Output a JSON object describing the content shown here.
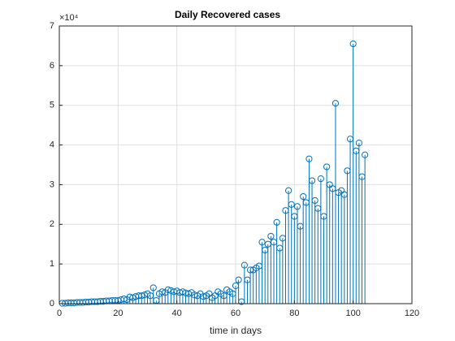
{
  "chart_data": {
    "type": "stem",
    "title": "Daily Recovered cases",
    "xlabel": "time in days",
    "y_multiplier": "×10⁴",
    "x": [
      1,
      2,
      3,
      4,
      5,
      6,
      7,
      8,
      9,
      10,
      11,
      12,
      13,
      14,
      15,
      16,
      17,
      18,
      19,
      20,
      21,
      22,
      23,
      24,
      25,
      26,
      27,
      28,
      29,
      30,
      31,
      32,
      33,
      34,
      35,
      36,
      37,
      38,
      39,
      40,
      41,
      42,
      43,
      44,
      45,
      46,
      47,
      48,
      49,
      50,
      51,
      52,
      53,
      54,
      55,
      56,
      57,
      58,
      59,
      60,
      61,
      62,
      63,
      64,
      65,
      66,
      67,
      68,
      69,
      70,
      71,
      72,
      73,
      74,
      75,
      76,
      77,
      78,
      79,
      80,
      81,
      82,
      83,
      84,
      85,
      86,
      87,
      88,
      89,
      90,
      91,
      92,
      93,
      94,
      95,
      96,
      97,
      98,
      99,
      100,
      101,
      102,
      103,
      104
    ],
    "values": [
      0.01,
      0.01,
      0.02,
      0.02,
      0.02,
      0.03,
      0.03,
      0.03,
      0.04,
      0.04,
      0.05,
      0.05,
      0.05,
      0.06,
      0.06,
      0.07,
      0.07,
      0.08,
      0.08,
      0.08,
      0.1,
      0.12,
      0.1,
      0.17,
      0.15,
      0.18,
      0.2,
      0.2,
      0.22,
      0.25,
      0.2,
      0.4,
      0.08,
      0.25,
      0.3,
      0.28,
      0.35,
      0.33,
      0.3,
      0.32,
      0.28,
      0.3,
      0.27,
      0.25,
      0.28,
      0.22,
      0.2,
      0.25,
      0.18,
      0.2,
      0.25,
      0.15,
      0.2,
      0.3,
      0.25,
      0.2,
      0.35,
      0.3,
      0.25,
      0.45,
      0.6,
      0.05,
      0.97,
      0.6,
      0.85,
      0.85,
      0.9,
      0.95,
      1.55,
      1.35,
      1.5,
      1.7,
      1.55,
      2.05,
      1.4,
      1.65,
      2.35,
      2.85,
      2.5,
      2.2,
      2.45,
      1.95,
      2.7,
      2.55,
      3.65,
      3.1,
      2.6,
      2.4,
      3.15,
      2.2,
      3.45,
      3.0,
      2.9,
      5.05,
      2.8,
      2.85,
      2.75,
      3.35,
      4.15,
      6.55,
      3.85,
      4.05,
      3.2,
      3.75
    ],
    "color": "#0072bd",
    "xlim": [
      0,
      120
    ],
    "xticks": [
      0,
      20,
      40,
      60,
      80,
      100,
      120
    ],
    "ylim": [
      0,
      7
    ],
    "yticks": [
      0,
      1,
      2,
      3,
      4,
      5,
      6,
      7
    ],
    "grid": true
  }
}
